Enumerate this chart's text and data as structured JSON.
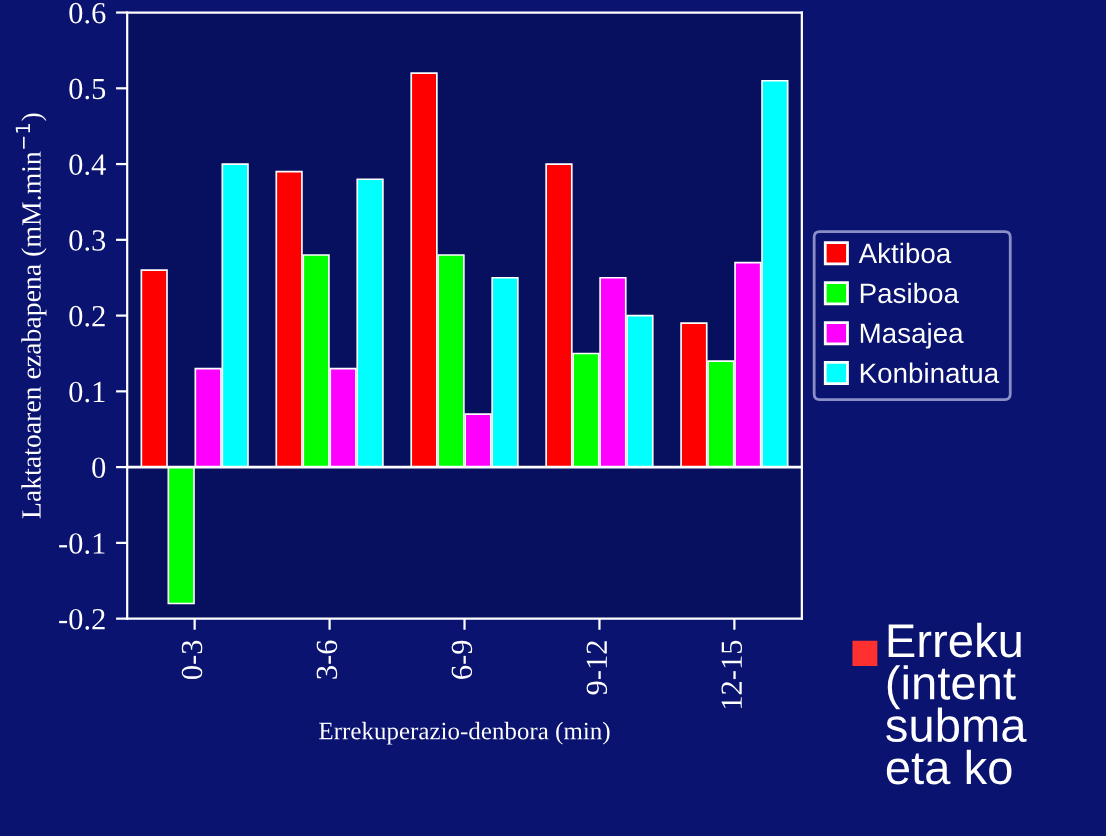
{
  "chart_data": {
    "type": "bar",
    "xlabel": "Errekuperazio-denbora (min)",
    "ylabel": "Laktatoaren ezabapena (mM.min$^{−1}$)",
    "categories": [
      "0-3",
      "3-6",
      "6-9",
      "9-12",
      "12-15"
    ],
    "series": [
      {
        "name": "Aktiboa",
        "color": "#ff0000",
        "values": [
          0.26,
          0.39,
          0.52,
          0.4,
          0.19
        ]
      },
      {
        "name": "Pasiboa",
        "color": "#00ff00",
        "values": [
          -0.18,
          0.28,
          0.28,
          0.15,
          0.14
        ]
      },
      {
        "name": "Masajea",
        "color": "#ff00ff",
        "values": [
          0.13,
          0.13,
          0.07,
          0.25,
          0.27
        ]
      },
      {
        "name": "Konbinatua",
        "color": "#00ffff",
        "values": [
          0.4,
          0.38,
          0.25,
          0.2,
          0.51
        ]
      }
    ],
    "ylim": [
      -0.2,
      0.6
    ],
    "yticks": [
      -0.2,
      -0.1,
      0,
      0.1,
      0.2,
      0.3,
      0.4,
      0.5,
      0.6
    ],
    "legend": "right",
    "annotations": [
      "Erreku\n(intent\nsubma\neta ko"
    ]
  }
}
